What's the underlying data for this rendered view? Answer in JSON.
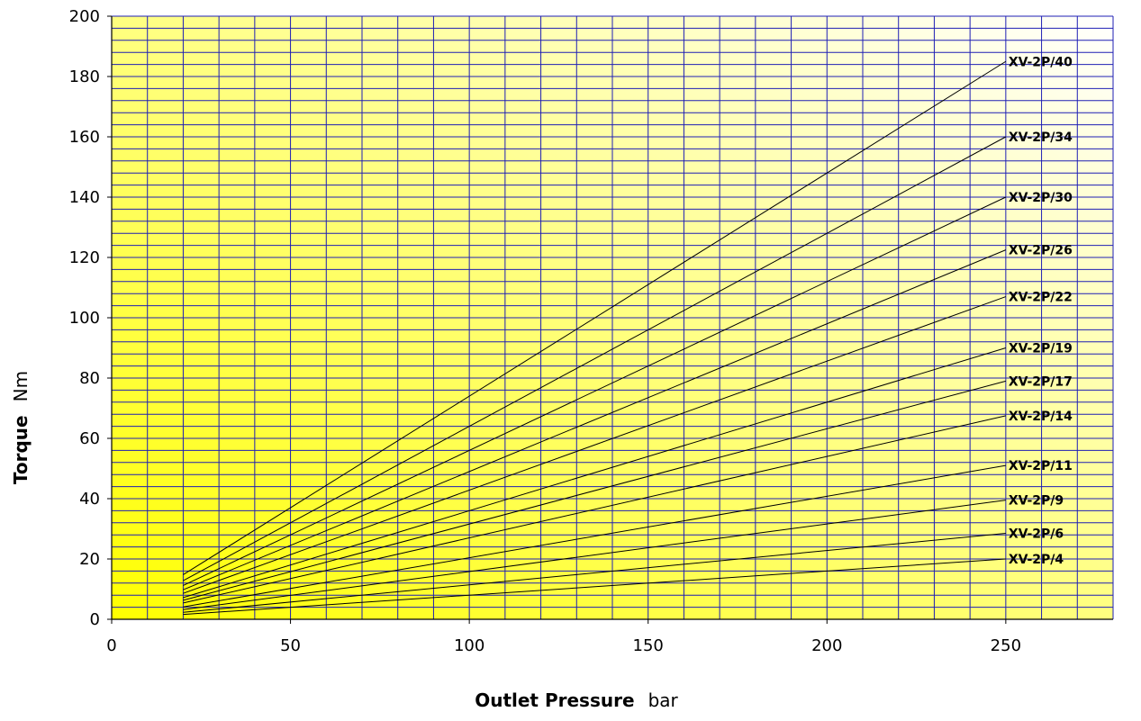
{
  "chart_data": {
    "type": "line",
    "xlabel": {
      "bold": "Outlet Pressure",
      "unit": "bar"
    },
    "ylabel": {
      "bold": "Torque",
      "unit": "Nm"
    },
    "xlim": [
      0,
      280
    ],
    "ylim": [
      0,
      200
    ],
    "x_ticks": [
      "0",
      "50",
      "100",
      "150",
      "200",
      "250"
    ],
    "y_ticks": [
      "0",
      "20",
      "40",
      "60",
      "80",
      "100",
      "120",
      "140",
      "160",
      "180",
      "200"
    ],
    "x_major_step": 50,
    "x_minor_step": 10,
    "y_major_step": 20,
    "y_minor_step": 4,
    "grid": true,
    "grid_color": "#1f1fb4",
    "background_gradient": [
      "#ffff00",
      "#ffffff"
    ],
    "line_color": "#000000",
    "series": [
      {
        "name": "XV-2P/40",
        "x": [
          20,
          250
        ],
        "y": [
          14.8,
          185
        ]
      },
      {
        "name": "XV-2P/34",
        "x": [
          20,
          250
        ],
        "y": [
          12.8,
          160
        ]
      },
      {
        "name": "XV-2P/30",
        "x": [
          20,
          250
        ],
        "y": [
          11.2,
          140
        ]
      },
      {
        "name": "XV-2P/26",
        "x": [
          20,
          250
        ],
        "y": [
          9.8,
          122.5
        ]
      },
      {
        "name": "XV-2P/22",
        "x": [
          20,
          250
        ],
        "y": [
          8.6,
          107
        ]
      },
      {
        "name": "XV-2P/19",
        "x": [
          20,
          250
        ],
        "y": [
          7.2,
          90
        ]
      },
      {
        "name": "XV-2P/17",
        "x": [
          20,
          250
        ],
        "y": [
          6.3,
          79
        ]
      },
      {
        "name": "XV-2P/14",
        "x": [
          20,
          250
        ],
        "y": [
          5.4,
          67.5
        ]
      },
      {
        "name": "XV-2P/11",
        "x": [
          20,
          250
        ],
        "y": [
          4.1,
          51
        ]
      },
      {
        "name": "XV-2P/9",
        "x": [
          20,
          250
        ],
        "y": [
          3.2,
          39.5
        ]
      },
      {
        "name": "XV-2P/6",
        "x": [
          20,
          250
        ],
        "y": [
          2.3,
          28.5
        ]
      },
      {
        "name": "XV-2P/4",
        "x": [
          20,
          250
        ],
        "y": [
          1.6,
          20
        ]
      }
    ]
  }
}
